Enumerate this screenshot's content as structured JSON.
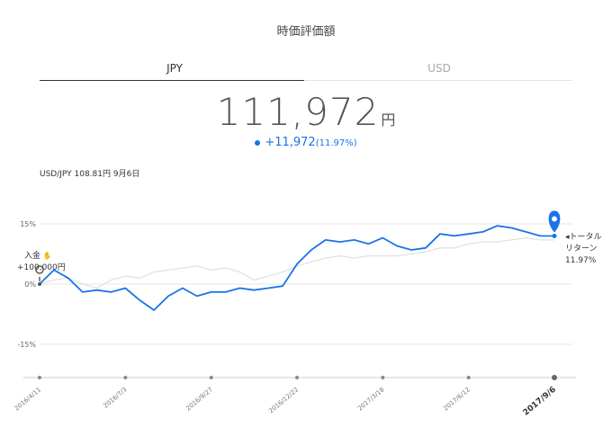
{
  "header": {
    "title": "時価評価額"
  },
  "tabs": [
    {
      "label": "JPY",
      "active": true
    },
    {
      "label": "USD",
      "active": false
    }
  ],
  "valuation": {
    "amount": "111,972",
    "unit": "円",
    "change": "+11,972",
    "change_pct": "(11.97%)"
  },
  "fx_rate": "USD/JPY 108.81円 9月6日",
  "annotations": {
    "deposit_label": "入金 ",
    "deposit_icon": "deposit-hand-icon",
    "deposit_amount": "+100,000円",
    "total_label_line1": "トータル",
    "total_label_line2": "リターン",
    "total_label_line3": "11.97%"
  },
  "colors": {
    "accent": "#1a73e8",
    "benchmark": "#e2e2e2",
    "grid": "#e6e6e6"
  },
  "chart_data": {
    "type": "line",
    "title": "",
    "xlabel": "",
    "ylabel": "",
    "ytick_labels": [
      "15%",
      "0%",
      "-15%"
    ],
    "ytick_values": [
      15,
      0,
      -15
    ],
    "ylim": [
      -24,
      16
    ],
    "x_tick_labels": [
      "2016/4/11",
      "2016/7/3",
      "2016/9/27",
      "2016/12/22",
      "2017/3/18",
      "2017/6/12",
      "2017/9/6"
    ],
    "x_tick_index": [
      0,
      6,
      12,
      18,
      24,
      30,
      36
    ],
    "grid": true,
    "series": [
      {
        "name": "portfolio",
        "color": "#1a73e8",
        "values": [
          0,
          3.5,
          1.5,
          -2,
          -1.5,
          -2,
          -1,
          -4,
          -6.5,
          -3,
          -1,
          -3,
          -2,
          -2,
          -1,
          -1.5,
          -1,
          -0.5,
          5,
          8.5,
          11,
          10.5,
          11,
          10,
          11.5,
          9.5,
          8.5,
          9,
          12.5,
          12,
          12.5,
          13,
          14.5,
          14,
          13,
          12,
          11.97
        ]
      },
      {
        "name": "benchmark",
        "color": "#e2e2e2",
        "values": [
          0,
          1,
          1.5,
          0,
          -1,
          1,
          2,
          1.5,
          3,
          3.5,
          4,
          4.5,
          3.5,
          4,
          3,
          1,
          2,
          3,
          4.5,
          5.5,
          6.5,
          7,
          6.5,
          7,
          7,
          7,
          7.5,
          8,
          9,
          9,
          10,
          10.5,
          10.5,
          11,
          11.5,
          11,
          11
        ]
      }
    ]
  }
}
